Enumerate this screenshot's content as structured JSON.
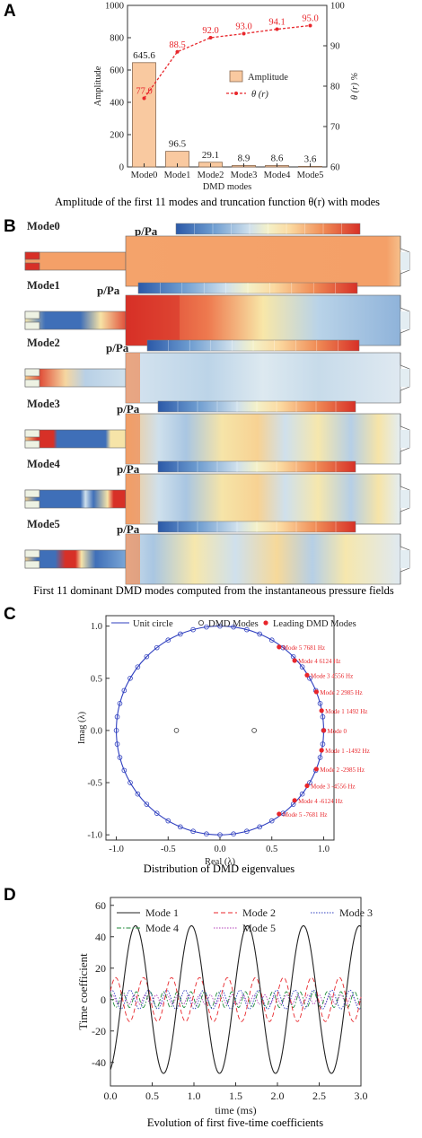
{
  "panels": {
    "A": {
      "label": "A",
      "caption": "Amplitude of the first 11 modes and truncation function θ(r) with modes"
    },
    "B": {
      "label": "B",
      "caption": "First 11 dominant DMD modes computed from the instantaneous pressure fields"
    },
    "C": {
      "label": "C",
      "caption": "Distribution of DMD eigenvalues"
    },
    "D": {
      "label": "D",
      "caption": "Evolution of first five-time coefficients"
    }
  },
  "colors": {
    "bar_fill": "#f9c9a0",
    "bar_edge": "#8a6a50",
    "theta_line": "#e8262b",
    "unit_circle": "#2f3fbf",
    "dmd_mode": "#2f3fbf",
    "leading_mode": "#e8262b",
    "annotation": "#e8262b"
  },
  "chart_data": [
    {
      "type": "bar",
      "panel": "A",
      "categories": [
        "Mode0",
        "Mode1",
        "Mode2",
        "Mode3",
        "Mode4",
        "Mode5"
      ],
      "xlabel": "DMD modes",
      "ylabel": "Amplitude",
      "y2label": "θ (r) %",
      "ylim": [
        0,
        1000
      ],
      "yticks": [
        "0",
        "200",
        "400",
        "600",
        "800",
        "1000"
      ],
      "y2lim": [
        60,
        100
      ],
      "y2ticks": [
        "60",
        "70",
        "80",
        "90",
        "100"
      ],
      "legend_position": "center-right",
      "series": [
        {
          "name": "Amplitude",
          "type": "bar",
          "values": [
            645.6,
            96.5,
            29.1,
            8.9,
            8.6,
            3.6
          ],
          "labels": [
            "645.6",
            "96.5",
            "29.1",
            "8.9",
            "8.6",
            "3.6"
          ]
        },
        {
          "name": "θ (r)",
          "type": "line",
          "axis": "right",
          "values": [
            77.0,
            88.5,
            92.0,
            93.0,
            94.1,
            95.0
          ],
          "labels": [
            "77.0",
            "88.5",
            "92.0",
            "93.0",
            "94.1",
            "95.0"
          ]
        }
      ]
    },
    {
      "type": "heatmap",
      "panel": "B",
      "colorbar_title": "p/Pa",
      "colormap": [
        "#2b59a8",
        "#4a7cc0",
        "#7aa6d6",
        "#b3cfe6",
        "#e3edf2",
        "#f6f3c6",
        "#fbd9a0",
        "#f5a870",
        "#ea6e47",
        "#d73027"
      ],
      "modes": [
        {
          "name": "Mode0",
          "ticks": [
            "0.0E+00",
            "4.0E+05",
            "8.0E+05",
            "1.2E+06",
            "1.6E+06",
            "2.0E+06"
          ]
        },
        {
          "name": "Mode1",
          "ticks": [
            "-1.6E+05",
            "-9.6E+04",
            "-3.2E+04",
            "3.2E+04",
            "9.6E+04",
            "1.6E+05"
          ]
        },
        {
          "name": "Mode2",
          "ticks": [
            "-8.0E+04",
            "-4.4E+04",
            "-8.0E+03",
            "2.8E+04",
            "6.4E+04",
            "1.0E+05"
          ]
        },
        {
          "name": "Mode3",
          "ticks": [
            "-1.0E+04",
            "-4.0E+03",
            "2.0E+03",
            "8.0E+03",
            "1.4E+04",
            "2.0E+04"
          ]
        },
        {
          "name": "Mode4",
          "ticks": [
            "-1.0E+04",
            "-6.0E+03",
            "-2.0E+03",
            "2.0E+03",
            "6.0E+03",
            "1.0E+04"
          ]
        },
        {
          "name": "Mode5",
          "ticks": [
            "-1.2E+04",
            "-7.2E+03",
            "-2.4E+03",
            "2.4E+03",
            "7.2E+03",
            "1.2E+04"
          ]
        }
      ]
    },
    {
      "type": "scatter",
      "panel": "C",
      "xlabel": "Real (λ)",
      "ylabel": "Imag (λ)",
      "xlim": [
        -1.1,
        1.1
      ],
      "ylim": [
        -1.05,
        1.1
      ],
      "xticks": [
        "-1.0",
        "-0.5",
        "0.0",
        "0.5",
        "1.0"
      ],
      "yticks": [
        "-1.0",
        "-0.5",
        "0.0",
        "0.5",
        "1.0"
      ],
      "legend_position": "top",
      "legend": [
        "Unit circle",
        "DMD Modes",
        "Leading DMD Modes"
      ],
      "unit_circle_radius": 1.0,
      "dmd_mode_angles_deg": [
        0,
        7.5,
        15,
        22.5,
        30,
        37.5,
        45,
        52.5,
        60,
        67.5,
        75,
        82.5,
        90,
        97.5,
        105,
        112.5,
        120,
        127.5,
        135,
        142.5,
        150,
        157.5,
        165,
        172.5,
        180,
        187.5,
        195,
        202.5,
        210,
        217.5,
        225,
        232.5,
        240,
        247.5,
        255,
        262.5,
        270,
        277.5,
        285,
        292.5,
        300,
        307.5,
        315,
        322.5,
        330,
        337.5,
        345,
        352.5
      ],
      "interior_modes": [
        {
          "x": -0.42,
          "y": 0.0
        },
        {
          "x": 0.33,
          "y": 0.0
        }
      ],
      "leading_modes": [
        {
          "label": "Mode 5  7681 Hz",
          "x": 0.57,
          "y": 0.8
        },
        {
          "label": "Mode 4  6124 Hz",
          "x": 0.72,
          "y": 0.67
        },
        {
          "label": "Mode 3  4556 Hz",
          "x": 0.84,
          "y": 0.53
        },
        {
          "label": "Mode 2  2985 Hz",
          "x": 0.93,
          "y": 0.37
        },
        {
          "label": "Mode 1  1492 Hz",
          "x": 0.98,
          "y": 0.19
        },
        {
          "label": "Mode 0",
          "x": 1.0,
          "y": 0.0
        },
        {
          "label": "Mode 1  -1492 Hz",
          "x": 0.98,
          "y": -0.19
        },
        {
          "label": "Mode 2  -2985 Hz",
          "x": 0.93,
          "y": -0.37
        },
        {
          "label": "Mode 3  -4556 Hz",
          "x": 0.84,
          "y": -0.53
        },
        {
          "label": "Mode 4  -6124 Hz",
          "x": 0.72,
          "y": -0.67
        },
        {
          "label": "Mode 5  -7681 Hz",
          "x": 0.57,
          "y": -0.8
        }
      ]
    },
    {
      "type": "line",
      "panel": "D",
      "xlabel": "time (ms)",
      "ylabel": "Time coefficient",
      "xlim": [
        0,
        3.0
      ],
      "ylim": [
        -55,
        65
      ],
      "xticks": [
        "0.0",
        "0.5",
        "1.0",
        "1.5",
        "2.0",
        "2.5",
        "3.0"
      ],
      "yticks": [
        "-40",
        "-20",
        "0",
        "20",
        "40",
        "60"
      ],
      "legend_position": "top",
      "series": [
        {
          "name": "Mode 1",
          "color": "#222222",
          "dash": "solid",
          "amplitude": 47,
          "frequency_hz": 1492
        },
        {
          "name": "Mode 2",
          "color": "#e8262b",
          "dash": "dashed",
          "amplitude": 14,
          "frequency_hz": 2985
        },
        {
          "name": "Mode 3",
          "color": "#2f3fbf",
          "dash": "dotted",
          "amplitude": 6,
          "frequency_hz": 4556
        },
        {
          "name": "Mode 4",
          "color": "#1f8a3a",
          "dash": "dashdot",
          "amplitude": 5,
          "frequency_hz": 6124
        },
        {
          "name": "Mode 5",
          "color": "#b23fb8",
          "dash": "dotted",
          "amplitude": 3,
          "frequency_hz": 7681
        }
      ]
    }
  ]
}
